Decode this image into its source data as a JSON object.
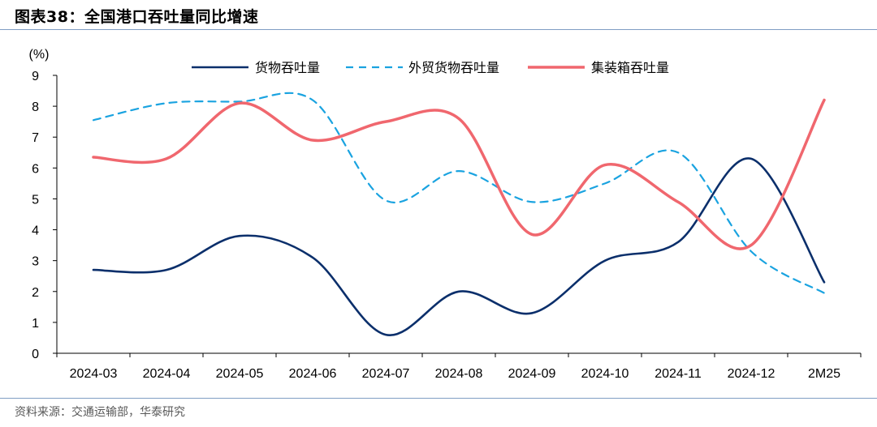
{
  "figure": {
    "title": "图表38：全国港口吞吐量同比增速",
    "source": "资料来源：交通运输部，华泰研究"
  },
  "chart_data": {
    "type": "line",
    "ylabel": "(%)",
    "xlabel": "",
    "ylim": [
      0,
      9
    ],
    "yticks": [
      0,
      1,
      2,
      3,
      4,
      5,
      6,
      7,
      8,
      9
    ],
    "categories": [
      "2024-03",
      "2024-04",
      "2024-05",
      "2024-06",
      "2024-07",
      "2024-08",
      "2024-09",
      "2024-10",
      "2024-11",
      "2024-12",
      "2M25"
    ],
    "grid": false,
    "legend_position": "top",
    "series": [
      {
        "name": "货物吞吐量",
        "color": "#0b2f6b",
        "style": "solid",
        "values": [
          2.7,
          2.7,
          3.8,
          3.1,
          0.6,
          2.0,
          1.3,
          3.0,
          3.6,
          6.3,
          2.3
        ]
      },
      {
        "name": "外贸货物吞吐量",
        "color": "#1aa3e0",
        "style": "dashed",
        "values": [
          7.55,
          8.1,
          8.15,
          8.2,
          4.95,
          5.9,
          4.9,
          5.5,
          6.5,
          3.3,
          1.95
        ]
      },
      {
        "name": "集装箱吞吐量",
        "color": "#f0676e",
        "style": "solid",
        "values": [
          6.35,
          6.3,
          8.1,
          6.9,
          7.5,
          7.6,
          3.85,
          6.1,
          4.9,
          3.5,
          8.2
        ]
      }
    ]
  }
}
